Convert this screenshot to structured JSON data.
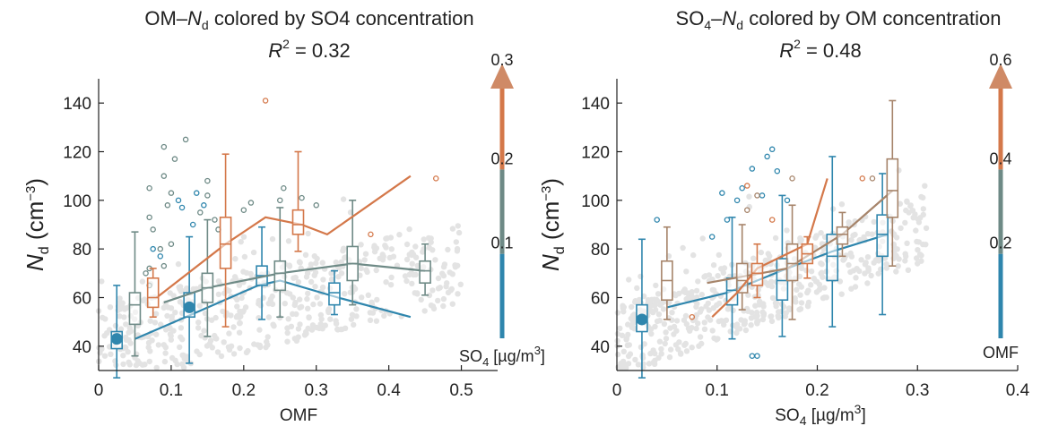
{
  "colors": {
    "blue": "#2f86ad",
    "gray": "#6e8a86",
    "orange": "#d4784a",
    "brown": "#a6846a",
    "scatter": "#e3e3e3",
    "arrow": "#cf8a66"
  },
  "chart_data": [
    {
      "type": "scatter",
      "title": "OM–Nd colored by SO4 concentration",
      "title_prefix": "OM–",
      "title_var": "N",
      "title_sub": "d",
      "title_suffix": " colored by SO4 concentration",
      "r2_label": "R",
      "r2_exp": "2",
      "r2_value": "= 0.32",
      "xlabel": "OMF",
      "ylabel_main": "N",
      "ylabel_sub": "d",
      "ylabel_unit": " (cm",
      "ylabel_exp": "−3",
      "ylabel_close": ")",
      "xlim": [
        0,
        0.55
      ],
      "ylim": [
        30,
        150
      ],
      "xticks": [
        0,
        0.1,
        0.2,
        0.3,
        0.4,
        0.5
      ],
      "xtick_labels": [
        "0",
        "0.1",
        "0.2",
        "0.3",
        "0.4",
        "0.5"
      ],
      "yticks": [
        40,
        60,
        80,
        100,
        120,
        140
      ],
      "ytick_labels": [
        "40",
        "60",
        "80",
        "100",
        "120",
        "140"
      ],
      "colorbar": {
        "ticks": [
          0.1,
          0.2,
          0.3
        ],
        "tick_labels": [
          "0.1",
          "0.2",
          "0.3"
        ],
        "range": [
          0,
          0.3
        ],
        "label": "SO4 [µg/m3]",
        "label_main": "SO",
        "label_sub": "4",
        "label_unit": " [µg/m",
        "label_exp": "3",
        "label_close": "]",
        "bands": [
          "blue",
          "gray",
          "orange"
        ]
      },
      "series": [
        {
          "color": "blue",
          "line": [
            [
              0.05,
              43
            ],
            [
              0.12,
              52
            ],
            [
              0.22,
              65
            ],
            [
              0.25,
              67
            ],
            [
              0.33,
              60
            ],
            [
              0.43,
              52
            ]
          ],
          "boxes": [
            {
              "x": 0.025,
              "whislo": 27,
              "q1": 39,
              "med": 43,
              "q3": 46,
              "whishi": 65,
              "mean_dot": 43
            },
            {
              "x": 0.125,
              "whislo": 33,
              "q1": 52,
              "med": 56,
              "q3": 62,
              "whishi": 85,
              "mean_dot": 56
            },
            {
              "x": 0.225,
              "whislo": 51,
              "q1": 65,
              "med": 69,
              "q3": 73,
              "whishi": 89
            },
            {
              "x": 0.325,
              "whislo": 53,
              "q1": 57,
              "med": 62,
              "q3": 66,
              "whishi": 71
            }
          ],
          "outliers": [
            [
              0.075,
              80
            ],
            [
              0.085,
              77
            ],
            [
              0.11,
              100
            ],
            [
              0.115,
              97
            ],
            [
              0.13,
              90
            ],
            [
              0.135,
              103
            ],
            [
              0.145,
              98
            ]
          ]
        },
        {
          "color": "gray",
          "line": [
            [
              0.09,
              58
            ],
            [
              0.15,
              64
            ],
            [
              0.25,
              70
            ],
            [
              0.35,
              74
            ],
            [
              0.45,
              71
            ]
          ],
          "boxes": [
            {
              "x": 0.05,
              "whislo": 36,
              "q1": 49,
              "med": 57,
              "q3": 62,
              "whishi": 87
            },
            {
              "x": 0.15,
              "whislo": 44,
              "q1": 58,
              "med": 64,
              "q3": 70,
              "whishi": 92
            },
            {
              "x": 0.25,
              "whislo": 52,
              "q1": 63,
              "med": 70,
              "q3": 75,
              "whishi": 97
            },
            {
              "x": 0.35,
              "whislo": 57,
              "q1": 67,
              "med": 74,
              "q3": 81,
              "whishi": 100
            },
            {
              "x": 0.45,
              "whislo": 61,
              "q1": 66,
              "med": 71,
              "q3": 75,
              "whishi": 82
            }
          ],
          "outliers": [
            [
              0.07,
              65
            ],
            [
              0.065,
              70
            ],
            [
              0.07,
              72
            ],
            [
              0.09,
              73
            ],
            [
              0.07,
              93
            ],
            [
              0.075,
              88
            ],
            [
              0.085,
              80
            ],
            [
              0.1,
              82
            ],
            [
              0.07,
              105
            ],
            [
              0.09,
              110
            ],
            [
              0.14,
              95
            ],
            [
              0.15,
              102
            ],
            [
              0.16,
              92
            ],
            [
              0.165,
              88
            ],
            [
              0.2,
              96
            ],
            [
              0.21,
              99
            ],
            [
              0.25,
              100
            ],
            [
              0.255,
              105
            ],
            [
              0.3,
              98
            ],
            [
              0.28,
              101
            ],
            [
              0.09,
              122
            ],
            [
              0.105,
              117
            ],
            [
              0.12,
              125
            ],
            [
              0.095,
              98
            ],
            [
              0.1,
              103
            ],
            [
              0.15,
              108
            ]
          ]
        },
        {
          "color": "orange",
          "line": [
            [
              0.08,
              60
            ],
            [
              0.175,
              82
            ],
            [
              0.23,
              93
            ],
            [
              0.28,
              90
            ],
            [
              0.315,
              86
            ],
            [
              0.43,
              110
            ]
          ],
          "boxes": [
            {
              "x": 0.075,
              "whislo": 52,
              "q1": 56,
              "med": 60,
              "q3": 68,
              "whishi": 72
            },
            {
              "x": 0.175,
              "whislo": 48,
              "q1": 72,
              "med": 82,
              "q3": 93,
              "whishi": 119
            },
            {
              "x": 0.275,
              "whislo": 79,
              "q1": 86,
              "med": 90,
              "q3": 96,
              "whishi": 120
            }
          ],
          "outliers": [
            [
              0.23,
              141
            ],
            [
              0.375,
              86
            ],
            [
              0.465,
              109
            ]
          ]
        }
      ]
    },
    {
      "type": "scatter",
      "title": "SO4–Nd colored by OM concentration",
      "title_prefix": "SO",
      "title_prefix_sub": "4",
      "title_mid": "–",
      "title_var": "N",
      "title_sub": "d",
      "title_suffix": " colored by OM concentration",
      "r2_label": "R",
      "r2_exp": "2",
      "r2_value": "= 0.48",
      "xlabel": "SO4 [µg/m3]",
      "xlabel_main": "SO",
      "xlabel_sub": "4",
      "xlabel_unit": " [µg/m",
      "xlabel_exp": "3",
      "xlabel_close": "]",
      "ylabel_main": "N",
      "ylabel_sub": "d",
      "ylabel_unit": " (cm",
      "ylabel_exp": "−3",
      "ylabel_close": ")",
      "xlim": [
        0,
        0.4
      ],
      "ylim": [
        30,
        150
      ],
      "xticks": [
        0,
        0.1,
        0.2,
        0.3,
        0.4
      ],
      "xtick_labels": [
        "0",
        "0.1",
        "0.2",
        "0.3",
        "0.4"
      ],
      "yticks": [
        40,
        60,
        80,
        100,
        120,
        140
      ],
      "ytick_labels": [
        "40",
        "60",
        "80",
        "100",
        "120",
        "140"
      ],
      "colorbar": {
        "ticks": [
          0.2,
          0.4,
          0.6
        ],
        "tick_labels": [
          "0.2",
          "0.4",
          "0.6"
        ],
        "range": [
          0,
          0.6
        ],
        "label": "OMF",
        "bands": [
          "blue",
          "gray",
          "orange"
        ]
      },
      "series": [
        {
          "color": "blue",
          "line": [
            [
              0.05,
              56
            ],
            [
              0.11,
              62
            ],
            [
              0.17,
              72
            ],
            [
              0.215,
              79
            ],
            [
              0.27,
              86
            ]
          ],
          "boxes": [
            {
              "x": 0.025,
              "whislo": 27,
              "q1": 46,
              "med": 51,
              "q3": 57,
              "whishi": 84,
              "mean_dot": 51
            },
            {
              "x": 0.115,
              "whislo": 43,
              "q1": 57,
              "med": 63,
              "q3": 68,
              "whishi": 93
            },
            {
              "x": 0.165,
              "whislo": 44,
              "q1": 59,
              "med": 67,
              "q3": 76,
              "whishi": 102
            },
            {
              "x": 0.215,
              "whislo": 48,
              "q1": 67,
              "med": 77,
              "q3": 86,
              "whishi": 118
            },
            {
              "x": 0.265,
              "whislo": 53,
              "q1": 77,
              "med": 86,
              "q3": 94,
              "whishi": 111
            }
          ],
          "outliers": [
            [
              0.04,
              92
            ],
            [
              0.095,
              85
            ],
            [
              0.105,
              103
            ],
            [
              0.11,
              92
            ],
            [
              0.12,
              100
            ],
            [
              0.125,
              105
            ],
            [
              0.135,
              113
            ],
            [
              0.15,
              118
            ],
            [
              0.155,
              121
            ],
            [
              0.16,
              112
            ],
            [
              0.145,
              102
            ],
            [
              0.17,
              100
            ],
            [
              0.14,
              36
            ],
            [
              0.135,
              36
            ]
          ]
        },
        {
          "color": "brown",
          "line": [
            [
              0.09,
              66
            ],
            [
              0.17,
              72
            ],
            [
              0.225,
              86
            ],
            [
              0.275,
              104
            ]
          ],
          "boxes": [
            {
              "x": 0.05,
              "whislo": 51,
              "q1": 59,
              "med": 67,
              "q3": 75,
              "whishi": 89
            },
            {
              "x": 0.125,
              "whislo": 55,
              "q1": 62,
              "med": 67,
              "q3": 74,
              "whishi": 90
            },
            {
              "x": 0.175,
              "whislo": 51,
              "q1": 67,
              "med": 74,
              "q3": 82,
              "whishi": 98
            },
            {
              "x": 0.225,
              "whislo": 77,
              "q1": 82,
              "med": 86,
              "q3": 89,
              "whishi": 95
            },
            {
              "x": 0.275,
              "whislo": 73,
              "q1": 93,
              "med": 104,
              "q3": 117,
              "whishi": 141
            }
          ],
          "outliers": [
            [
              0.13,
              96
            ],
            [
              0.14,
              102
            ],
            [
              0.175,
              109
            ],
            [
              0.255,
              109
            ]
          ]
        },
        {
          "color": "orange",
          "line": [
            [
              0.095,
              52
            ],
            [
              0.12,
              62
            ],
            [
              0.14,
              72
            ],
            [
              0.19,
              82
            ],
            [
              0.21,
              109
            ]
          ],
          "boxes": [
            {
              "x": 0.14,
              "whislo": 60,
              "q1": 65,
              "med": 70,
              "q3": 74,
              "whishi": 82
            },
            {
              "x": 0.19,
              "whislo": 68,
              "q1": 74,
              "med": 78,
              "q3": 82,
              "whishi": 85
            }
          ],
          "outliers": [
            [
              0.075,
              52
            ],
            [
              0.13,
              106
            ],
            [
              0.155,
              92
            ],
            [
              0.245,
              109
            ]
          ]
        }
      ]
    }
  ]
}
